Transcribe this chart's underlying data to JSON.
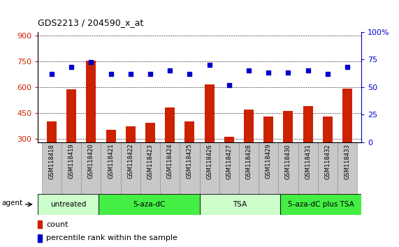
{
  "title": "GDS2213 / 204590_x_at",
  "samples": [
    "GSM118418",
    "GSM118419",
    "GSM118420",
    "GSM118421",
    "GSM118422",
    "GSM118423",
    "GSM118424",
    "GSM118425",
    "GSM118426",
    "GSM118427",
    "GSM118428",
    "GSM118429",
    "GSM118430",
    "GSM118431",
    "GSM118432",
    "GSM118433"
  ],
  "counts": [
    400,
    585,
    755,
    350,
    370,
    390,
    480,
    400,
    615,
    310,
    470,
    430,
    460,
    490,
    430,
    590
  ],
  "percentiles": [
    62,
    68,
    73,
    62,
    62,
    62,
    65,
    62,
    70,
    52,
    65,
    63,
    63,
    65,
    62,
    68
  ],
  "bar_color": "#CC2200",
  "dot_color": "#0000CC",
  "ylim_left": [
    280,
    920
  ],
  "ylim_right": [
    0,
    100
  ],
  "yticks_left": [
    300,
    450,
    600,
    750,
    900
  ],
  "yticks_right": [
    0,
    25,
    50,
    75,
    100
  ],
  "groups": [
    {
      "label": "untreated",
      "start": 0,
      "end": 3,
      "color": "#CCFFCC"
    },
    {
      "label": "5-aza-dC",
      "start": 3,
      "end": 8,
      "color": "#44EE44"
    },
    {
      "label": "TSA",
      "start": 8,
      "end": 12,
      "color": "#CCFFCC"
    },
    {
      "label": "5-aza-dC plus TSA",
      "start": 12,
      "end": 16,
      "color": "#44EE44"
    }
  ],
  "agent_label": "agent",
  "legend_count": "count",
  "legend_percentile": "percentile rank within the sample",
  "left_tick_color": "#CC2200",
  "right_tick_color": "#0000CC",
  "bar_width": 0.5,
  "n_samples": 16
}
